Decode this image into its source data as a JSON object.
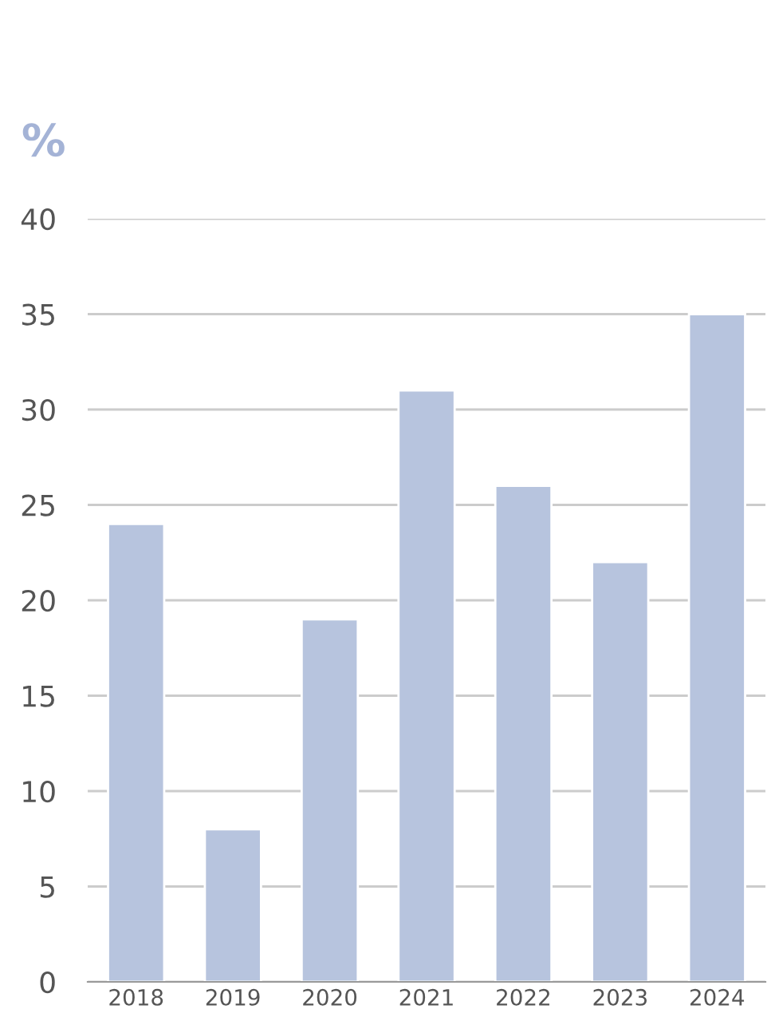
{
  "chart_data": {
    "type": "bar",
    "ylabel": "%",
    "categories": [
      "2018",
      "2019",
      "2020",
      "2021",
      "2022",
      "2023",
      "2024"
    ],
    "values": [
      24,
      8,
      19,
      31,
      26,
      22,
      35
    ],
    "color": "#b7c4de",
    "ylim": [
      0,
      40
    ],
    "yticks": [
      0,
      5,
      10,
      15,
      20,
      25,
      30,
      35,
      40
    ],
    "grid": "y"
  }
}
